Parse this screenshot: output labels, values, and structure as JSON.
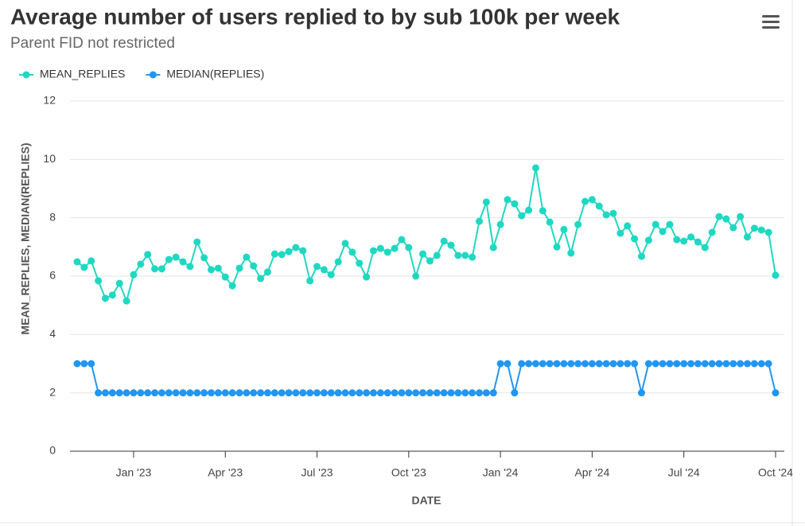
{
  "chart_data": {
    "type": "line",
    "title": "Average number of users replied to by sub 100k per week",
    "subtitle": "Parent FID not restricted",
    "x_label": "DATE",
    "y_label": "MEAN_REPLIES, MEDIAN(REPLIES)",
    "categories": [
      null,
      null,
      null,
      null,
      null,
      null,
      null,
      null,
      "Jan '23",
      null,
      null,
      null,
      null,
      null,
      null,
      null,
      null,
      null,
      null,
      null,
      null,
      "Apr '23",
      null,
      null,
      null,
      null,
      null,
      null,
      null,
      null,
      null,
      null,
      null,
      null,
      "Jul '23",
      null,
      null,
      null,
      null,
      null,
      null,
      null,
      null,
      null,
      null,
      null,
      null,
      "Oct '23",
      null,
      null,
      null,
      null,
      null,
      null,
      null,
      null,
      null,
      null,
      null,
      null,
      "Jan '24",
      null,
      null,
      null,
      null,
      null,
      null,
      null,
      null,
      null,
      null,
      null,
      null,
      "Apr '24",
      null,
      null,
      null,
      null,
      null,
      null,
      null,
      null,
      null,
      null,
      null,
      null,
      "Jul '24",
      null,
      null,
      null,
      null,
      null,
      null,
      null,
      null,
      null,
      null,
      null,
      null,
      "Oct '24"
    ],
    "series": [
      {
        "name": "MEAN_REPLIES",
        "color": "#1fd8c2",
        "values": [
          6.49,
          6.3,
          6.52,
          5.84,
          5.24,
          5.35,
          5.75,
          5.15,
          6.05,
          6.41,
          6.74,
          6.25,
          6.25,
          6.57,
          6.65,
          6.49,
          6.33,
          7.17,
          6.63,
          6.22,
          6.27,
          5.97,
          5.67,
          6.27,
          6.65,
          6.35,
          5.92,
          6.14,
          6.76,
          6.74,
          6.84,
          6.98,
          6.87,
          5.84,
          6.33,
          6.22,
          6.05,
          6.49,
          7.12,
          6.82,
          6.44,
          5.97,
          6.87,
          6.95,
          6.82,
          6.95,
          7.25,
          6.98,
          6.0,
          6.76,
          6.52,
          6.71,
          7.2,
          7.06,
          6.71,
          6.71,
          6.65,
          7.88,
          8.54,
          6.98,
          7.77,
          8.62,
          8.48,
          8.07,
          8.26,
          9.71,
          8.24,
          7.85,
          7.0,
          7.6,
          6.79,
          7.77,
          8.56,
          8.62,
          8.4,
          8.1,
          8.15,
          7.47,
          7.72,
          7.28,
          6.68,
          7.23,
          7.77,
          7.53,
          7.77,
          7.25,
          7.2,
          7.34,
          7.17,
          6.98,
          7.5,
          8.04,
          7.96,
          7.66,
          8.04,
          7.34,
          7.64,
          7.58,
          7.5,
          6.03
        ]
      },
      {
        "name": "MEDIAN(REPLIES)",
        "color": "#2196f3",
        "values": [
          3,
          3,
          3,
          2,
          2,
          2,
          2,
          2,
          2,
          2,
          2,
          2,
          2,
          2,
          2,
          2,
          2,
          2,
          2,
          2,
          2,
          2,
          2,
          2,
          2,
          2,
          2,
          2,
          2,
          2,
          2,
          2,
          2,
          2,
          2,
          2,
          2,
          2,
          2,
          2,
          2,
          2,
          2,
          2,
          2,
          2,
          2,
          2,
          2,
          2,
          2,
          2,
          2,
          2,
          2,
          2,
          2,
          2,
          2,
          2,
          3,
          3,
          2,
          3,
          3,
          3,
          3,
          3,
          3,
          3,
          3,
          3,
          3,
          3,
          3,
          3,
          3,
          3,
          3,
          3,
          2,
          3,
          3,
          3,
          3,
          3,
          3,
          3,
          3,
          3,
          3,
          3,
          3,
          3,
          3,
          3,
          3,
          3,
          3,
          2
        ]
      }
    ],
    "ylim": [
      0,
      12
    ],
    "yticks": [
      0,
      2,
      4,
      6,
      8,
      10,
      12
    ],
    "grid": true,
    "legend": "top-left"
  }
}
